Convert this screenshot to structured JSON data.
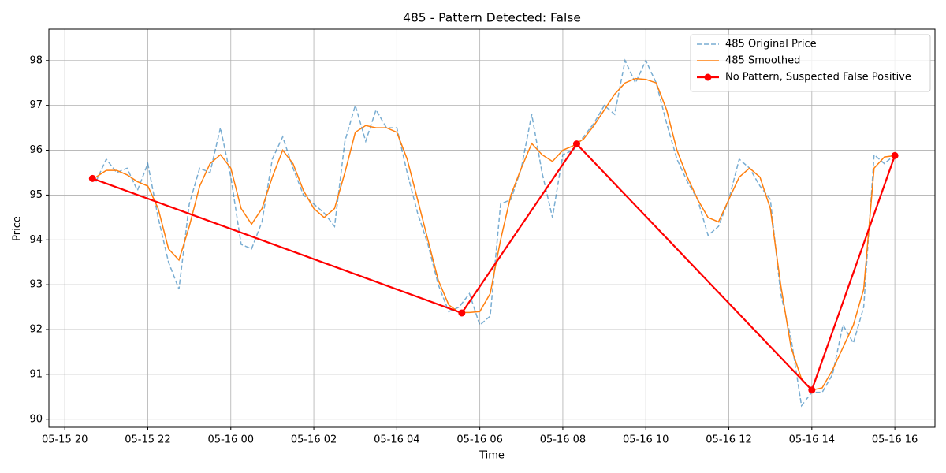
{
  "chart_data": {
    "type": "line",
    "title": "485 - Pattern Detected: False",
    "xlabel": "Time",
    "ylabel": "Price",
    "x": [
      "05-15 20:45",
      "05-15 21:00",
      "05-15 21:15",
      "05-15 21:30",
      "05-15 21:45",
      "05-15 22:00",
      "05-15 22:15",
      "05-15 22:30",
      "05-15 22:45",
      "05-15 23:00",
      "05-15 23:15",
      "05-15 23:30",
      "05-15 23:45",
      "05-16 00:00",
      "05-16 00:15",
      "05-16 00:30",
      "05-16 00:45",
      "05-16 01:00",
      "05-16 01:15",
      "05-16 01:30",
      "05-16 01:45",
      "05-16 02:00",
      "05-16 02:15",
      "05-16 02:30",
      "05-16 02:45",
      "05-16 03:00",
      "05-16 03:15",
      "05-16 03:30",
      "05-16 03:45",
      "05-16 04:00",
      "05-16 04:15",
      "05-16 04:30",
      "05-16 04:45",
      "05-16 05:00",
      "05-16 05:15",
      "05-16 05:30",
      "05-16 05:45",
      "05-16 06:00",
      "05-16 06:15",
      "05-16 06:30",
      "05-16 06:45",
      "05-16 07:00",
      "05-16 07:15",
      "05-16 07:30",
      "05-16 07:45",
      "05-16 08:00",
      "05-16 08:15",
      "05-16 08:30",
      "05-16 08:45",
      "05-16 09:00",
      "05-16 09:15",
      "05-16 09:30",
      "05-16 09:45",
      "05-16 10:00",
      "05-16 10:15",
      "05-16 10:30",
      "05-16 10:45",
      "05-16 11:00",
      "05-16 11:15",
      "05-16 11:30",
      "05-16 11:45",
      "05-16 12:00",
      "05-16 12:15",
      "05-16 12:30",
      "05-16 12:45",
      "05-16 13:00",
      "05-16 13:15",
      "05-16 13:30",
      "05-16 13:45",
      "05-16 14:00",
      "05-16 14:15",
      "05-16 14:30",
      "05-16 14:45",
      "05-16 15:00",
      "05-16 15:15",
      "05-16 15:30",
      "05-16 15:45",
      "05-16 16:00"
    ],
    "series": [
      {
        "name": "485 Original Price",
        "color": "#1f77b4",
        "linestyle": "dashed",
        "alpha": 0.6,
        "linewidth": 1.5,
        "values": [
          95.3,
          95.8,
          95.5,
          95.6,
          95.1,
          95.7,
          94.5,
          93.5,
          92.9,
          94.8,
          95.6,
          95.5,
          96.5,
          95.4,
          93.9,
          93.8,
          94.4,
          95.8,
          96.3,
          95.6,
          95.0,
          94.8,
          94.6,
          94.3,
          96.2,
          97.0,
          96.2,
          96.9,
          96.5,
          96.5,
          95.5,
          94.6,
          93.9,
          93.0,
          92.4,
          92.5,
          92.8,
          92.1,
          92.3,
          94.8,
          94.9,
          95.6,
          96.8,
          95.5,
          94.5,
          95.9,
          96.0,
          96.3,
          96.6,
          97.0,
          96.8,
          98.0,
          97.5,
          98.0,
          97.5,
          96.6,
          95.8,
          95.3,
          94.9,
          94.1,
          94.3,
          94.9,
          95.8,
          95.6,
          95.2,
          94.9,
          92.8,
          91.8,
          90.3,
          90.6,
          90.6,
          91.0,
          92.1,
          91.7,
          92.5,
          95.9,
          95.7,
          95.9
        ]
      },
      {
        "name": "485 Smoothed",
        "color": "#ff7f0e",
        "linestyle": "solid",
        "alpha": 1,
        "linewidth": 1.5,
        "values": [
          95.4,
          95.55,
          95.55,
          95.45,
          95.3,
          95.2,
          94.7,
          93.8,
          93.55,
          94.3,
          95.2,
          95.7,
          95.9,
          95.6,
          94.7,
          94.35,
          94.7,
          95.4,
          96.0,
          95.7,
          95.1,
          94.7,
          94.5,
          94.7,
          95.5,
          96.4,
          96.55,
          96.5,
          96.5,
          96.4,
          95.8,
          94.9,
          94.0,
          93.1,
          92.55,
          92.38,
          92.38,
          92.4,
          92.8,
          94.0,
          95.0,
          95.6,
          96.15,
          95.9,
          95.75,
          96.0,
          96.1,
          96.25,
          96.55,
          96.9,
          97.25,
          97.5,
          97.6,
          97.58,
          97.5,
          96.9,
          96.0,
          95.4,
          94.9,
          94.5,
          94.4,
          94.9,
          95.4,
          95.6,
          95.4,
          94.7,
          93.0,
          91.6,
          90.9,
          90.65,
          90.7,
          91.1,
          91.6,
          92.1,
          92.9,
          95.6,
          95.85,
          95.88
        ]
      },
      {
        "name": "No Pattern, Suspected False Positive",
        "color": "#ff0000",
        "linestyle": "solid",
        "alpha": 1,
        "linewidth": 2.2,
        "marker": "o",
        "x": [
          "05-15 20:40",
          "05-16 05:34",
          "05-16 08:20",
          "05-16 14:00",
          "05-16 16:00"
        ],
        "values": [
          95.37,
          92.37,
          96.14,
          90.65,
          95.88
        ]
      }
    ],
    "xlim": [
      "05-15 19:37",
      "05-16 16:58"
    ],
    "xticks": [
      "05-15 20",
      "05-15 22",
      "05-16 00",
      "05-16 02",
      "05-16 04",
      "05-16 06",
      "05-16 08",
      "05-16 10",
      "05-16 12",
      "05-16 14",
      "05-16 16"
    ],
    "ylim": [
      89.82,
      98.7
    ],
    "yticks": [
      90,
      91,
      92,
      93,
      94,
      95,
      96,
      97,
      98
    ],
    "grid": true,
    "legend": "upper right"
  }
}
